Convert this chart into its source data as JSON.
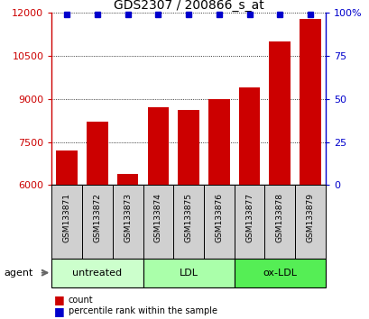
{
  "title": "GDS2307 / 200866_s_at",
  "samples": [
    "GSM133871",
    "GSM133872",
    "GSM133873",
    "GSM133874",
    "GSM133875",
    "GSM133876",
    "GSM133877",
    "GSM133878",
    "GSM133879"
  ],
  "counts": [
    7200,
    8200,
    6400,
    8700,
    8600,
    9000,
    9400,
    11000,
    11800
  ],
  "percentiles": [
    99,
    99,
    99,
    99,
    99,
    99,
    99,
    99,
    99
  ],
  "bar_color": "#cc0000",
  "dot_color": "#0000cc",
  "ylim_left": [
    6000,
    12000
  ],
  "ylim_right": [
    0,
    100
  ],
  "yticks_left": [
    6000,
    7500,
    9000,
    10500,
    12000
  ],
  "yticks_right": [
    0,
    25,
    50,
    75,
    100
  ],
  "groups": [
    {
      "label": "untreated",
      "start": 0,
      "end": 3,
      "color": "#ccffcc"
    },
    {
      "label": "LDL",
      "start": 3,
      "end": 6,
      "color": "#aaffaa"
    },
    {
      "label": "ox-LDL",
      "start": 6,
      "end": 9,
      "color": "#55ee55"
    }
  ],
  "agent_label": "agent",
  "legend_count_label": "count",
  "legend_pct_label": "percentile rank within the sample",
  "bar_color_legend": "#cc0000",
  "dot_color_legend": "#0000cc",
  "title_fontsize": 10,
  "tick_fontsize": 8,
  "label_fontsize": 8,
  "sample_fontsize": 6.5,
  "group_fontsize": 8
}
